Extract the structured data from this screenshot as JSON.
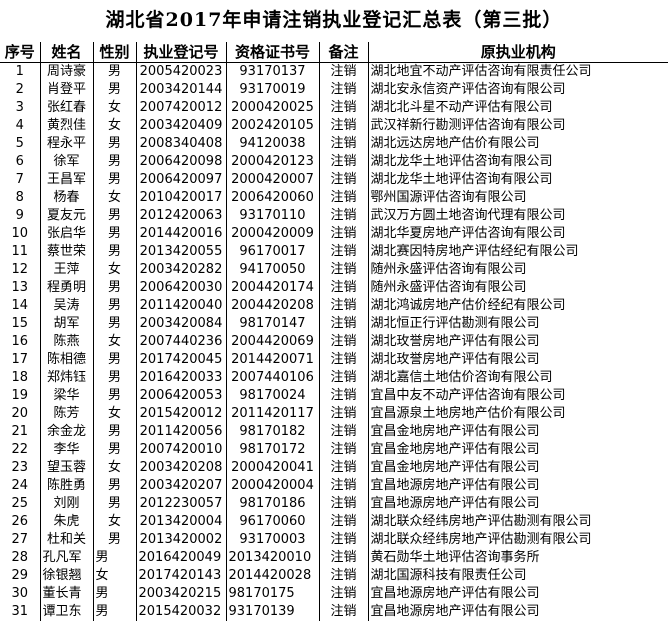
{
  "title": "湖北省2017年申请注销执业登记汇总表（第三批）",
  "headers": [
    "序号",
    "姓名",
    "性别",
    "执业登记号",
    "资格证书号",
    "备注",
    "原执业机构"
  ],
  "rows": [
    [
      "1",
      "周诗豪",
      "男",
      "2005420023",
      "93170137",
      "注销",
      "湖北地宜不动产评估咨询有限责任公司"
    ],
    [
      "2",
      "肖登平",
      "男",
      "2003420144",
      "93170019",
      "注销",
      "湖北安永信资产评估咨询有限公司"
    ],
    [
      "3",
      "张红春",
      "女",
      "2007420012",
      "2000420025",
      "注销",
      "湖北北斗星不动产评估有限公司"
    ],
    [
      "4",
      "黄烈佳",
      "女",
      "2003420409",
      "2002420105",
      "注销",
      "武汉祥新行勘测评估咨询有限公司"
    ],
    [
      "5",
      "程永平",
      "男",
      "2008340408",
      "94120038",
      "注销",
      "湖北远达房地产估价有限公司"
    ],
    [
      "6",
      "徐军",
      "男",
      "2006420098",
      "2000420123",
      "注销",
      "湖北龙华土地评估咨询有限公司"
    ],
    [
      "7",
      "王昌军",
      "男",
      "2006420097",
      "2000420007",
      "注销",
      "湖北龙华土地评估咨询有限公司"
    ],
    [
      "8",
      "杨春",
      "女",
      "2010420017",
      "2006420060",
      "注销",
      "鄂州国源评估咨询有限公司"
    ],
    [
      "9",
      "夏友元",
      "男",
      "2012420063",
      "93170110",
      "注销",
      "武汉万方圆土地咨询代理有限公司"
    ],
    [
      "10",
      "张启华",
      "男",
      "2014420016",
      "2000420009",
      "注销",
      "湖北华夏房地产评估咨询有限公司"
    ],
    [
      "11",
      "蔡世荣",
      "男",
      "2013420055",
      "96170017",
      "注销",
      "湖北赛因特房地产评估经纪有限公司"
    ],
    [
      "12",
      "王萍",
      "女",
      "2003420282",
      "94170050",
      "注销",
      "随州永盛评估咨询有限公司"
    ],
    [
      "13",
      "程勇明",
      "男",
      "2006420030",
      "2004420174",
      "注销",
      "随州永盛评估咨询有限公司"
    ],
    [
      "14",
      "吴涛",
      "男",
      "2011420040",
      "2004420208",
      "注销",
      "湖北鸿诚房地产估价经纪有限公司"
    ],
    [
      "15",
      "胡军",
      "男",
      "2003420084",
      "98170147",
      "注销",
      "湖北恒正行评估勘测有限公司"
    ],
    [
      "16",
      "陈燕",
      "女",
      "2007440236",
      "2004420069",
      "注销",
      "湖北玫誉房地产评估有限公司"
    ],
    [
      "17",
      "陈相德",
      "男",
      "2017420045",
      "2014420071",
      "注销",
      "湖北玫誉房地产评估有限公司"
    ],
    [
      "18",
      "郑炜钰",
      "男",
      "2016420033",
      "2007440106",
      "注销",
      "湖北嘉信土地估价咨询有限公司"
    ],
    [
      "19",
      "梁华",
      "男",
      "2006420053",
      "98170024",
      "注销",
      "宜昌中友不动产评估咨询有限公司"
    ],
    [
      "20",
      "陈芳",
      "女",
      "2015420012",
      "2011420117",
      "注销",
      "宜昌源泉土地房地产估价有限公司"
    ],
    [
      "21",
      "余金龙",
      "男",
      "2011420056",
      "98170182",
      "注销",
      "宜昌金地房地产评估有限公司"
    ],
    [
      "22",
      "李华",
      "男",
      "2007420010",
      "98170172",
      "注销",
      "宜昌金地房地产评估有限公司"
    ],
    [
      "23",
      "望玉蓉",
      "女",
      "2003420208",
      "2000420041",
      "注销",
      "宜昌金地房地产评估有限公司"
    ],
    [
      "24",
      "陈胜勇",
      "男",
      "2003420207",
      "2000420004",
      "注销",
      "宜昌地源房地产评估有限公司"
    ],
    [
      "25",
      "刘刚",
      "男",
      "2012230057",
      "98170186",
      "注销",
      "宜昌地源房地产评估有限公司"
    ],
    [
      "26",
      "朱虎",
      "女",
      "2013420004",
      "96170060",
      "注销",
      "湖北联众经纬房地产评估勘测有限公司"
    ],
    [
      "27",
      "杜和关",
      "男",
      "2013420002",
      "93170003",
      "注销",
      "湖北联众经纬房地产评估勘测有限公司"
    ],
    [
      "28",
      "孔凡军",
      "男",
      "2016420049",
      "2013420010",
      "注销",
      "黄石勋华土地评估咨询事务所"
    ],
    [
      "29",
      "徐银翘",
      "女",
      "2017420143",
      "2014420028",
      "注销",
      "湖北国源科技有限责任公司"
    ],
    [
      "30",
      "董长青",
      "男",
      "2003420215",
      "98170175",
      "注销",
      "宜昌地源房地产评估有限公司"
    ],
    [
      "31",
      "谭卫东",
      "男",
      "2015420032",
      "93170139",
      "注销",
      "宜昌地源房地产评估有限公司"
    ]
  ]
}
